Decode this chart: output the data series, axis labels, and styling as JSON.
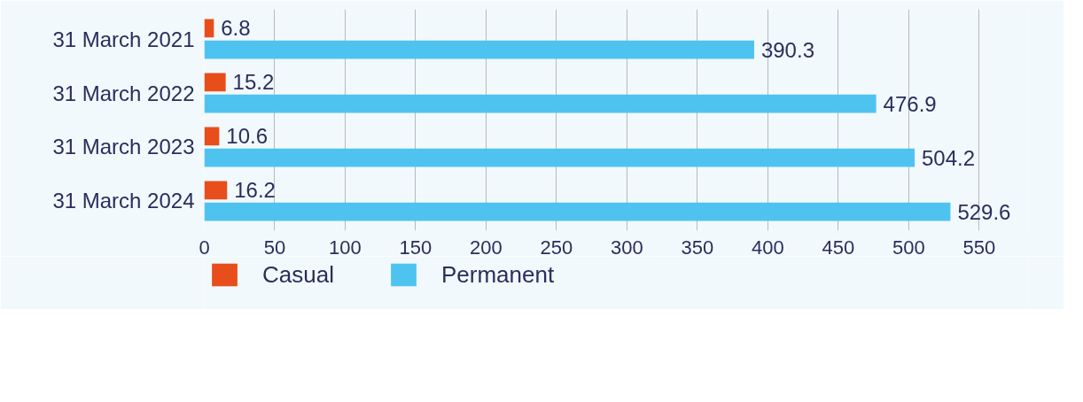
{
  "chart_data": {
    "type": "bar",
    "orientation": "horizontal",
    "categories": [
      "31 March 2021",
      "31 March 2022",
      "31 March 2023",
      "31 March 2024"
    ],
    "series": [
      {
        "name": "Casual",
        "color": "#e84e1b",
        "values": [
          6.8,
          15.2,
          10.6,
          16.2
        ]
      },
      {
        "name": "Permanent",
        "color": "#4fc3f0",
        "values": [
          390.3,
          476.9,
          504.2,
          529.6
        ]
      }
    ],
    "xlim": [
      0,
      585
    ],
    "xticks": [
      0,
      50,
      100,
      150,
      200,
      250,
      300,
      350,
      400,
      450,
      500,
      550
    ],
    "grid": "x",
    "legend": "bottom",
    "data_labels": true
  }
}
